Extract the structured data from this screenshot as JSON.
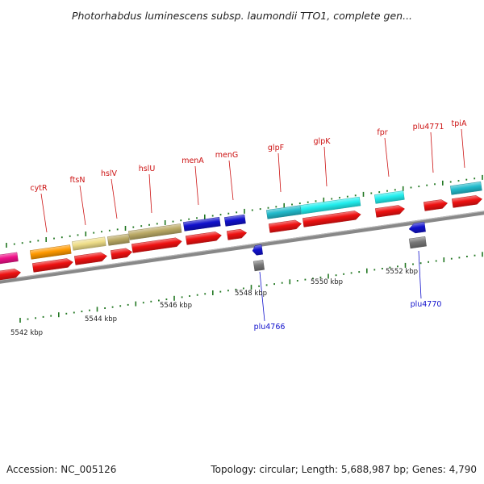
{
  "header": {
    "title": "Photorhabdus luminescens subsp. laumondii TTO1, complete gen..."
  },
  "footer": {
    "accession": "Accession: NC_005126",
    "summary": "Topology: circular; Length: 5,688,987 bp; Genes: 4,790"
  },
  "scale": {
    "ticks": [
      {
        "label": "5542 kbp"
      },
      {
        "label": "5544 kbp"
      },
      {
        "label": "5546 kbp"
      },
      {
        "label": "5548 kbp"
      },
      {
        "label": "5550 kbp"
      },
      {
        "label": "5552 kbp"
      }
    ]
  },
  "colors": {
    "backbone": "#888888",
    "cds": "#ee1111",
    "label_forward": "#cc1111",
    "label_reverse": "#1111cc",
    "tick": "#227722",
    "gray_gene": "#777777"
  },
  "genes": [
    {
      "label": "cytR",
      "strand": "+",
      "color": "#ff9900"
    },
    {
      "label": "ftsN",
      "strand": "+",
      "color": "#eedd88"
    },
    {
      "label": "hslV",
      "strand": "+",
      "color": "#bbaa66"
    },
    {
      "label": "hslU",
      "strand": "+",
      "color": "#bbaa66"
    },
    {
      "label": "menA",
      "strand": "+",
      "color": "#1111cc"
    },
    {
      "label": "menG",
      "strand": "+",
      "color": "#1111cc"
    },
    {
      "label": "glpF",
      "strand": "+",
      "color": "#22bbcc"
    },
    {
      "label": "glpK",
      "strand": "+",
      "color": "#22eeee"
    },
    {
      "label": "fpr",
      "strand": "+",
      "color": "#22eeee"
    },
    {
      "label": "plu4771",
      "strand": "+",
      "color": "#ee1111"
    },
    {
      "label": "tpiA",
      "strand": "+",
      "color": "#22bbcc"
    },
    {
      "label": "plu4766",
      "strand": "-",
      "color": "#1111cc"
    },
    {
      "label": "plu4770",
      "strand": "-",
      "color": "#1111cc"
    }
  ]
}
